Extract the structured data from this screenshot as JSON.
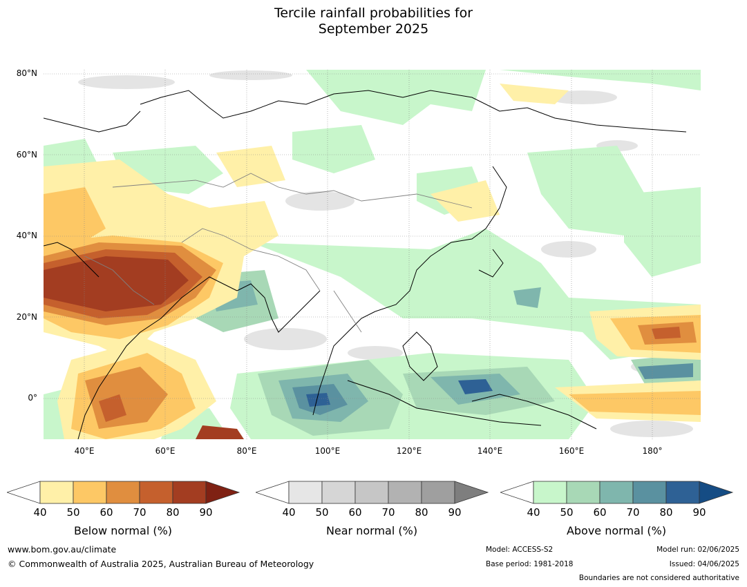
{
  "title_line1": "Tercile rainfall probabilities for",
  "title_line2": "September 2025",
  "lat_labels": [
    "80°N",
    "60°N",
    "40°N",
    "20°N",
    "0°"
  ],
  "lon_labels": [
    "40°E",
    "60°E",
    "80°E",
    "100°E",
    "120°E",
    "140°E",
    "160°E",
    "180°"
  ],
  "colorbars": {
    "below": {
      "title": "Below normal (%)",
      "ticks": [
        "40",
        "50",
        "60",
        "70",
        "80",
        "90"
      ],
      "colors": [
        "#fff0a8",
        "#fdc865",
        "#e08e3f",
        "#c5602d",
        "#a33d21",
        "#7f2113"
      ]
    },
    "near": {
      "title": "Near normal (%)",
      "ticks": [
        "40",
        "50",
        "60",
        "70",
        "80",
        "90"
      ],
      "colors": [
        "#e6e6e6",
        "#d6d6d6",
        "#c6c6c6",
        "#b2b2b2",
        "#9f9f9f",
        "#7e7e7e"
      ]
    },
    "above": {
      "title": "Above normal (%)",
      "ticks": [
        "40",
        "50",
        "60",
        "70",
        "80",
        "90"
      ],
      "colors": [
        "#c8f6cb",
        "#a8d8b6",
        "#7fb6ad",
        "#5a91a0",
        "#2e6195",
        "#154c84"
      ]
    }
  },
  "footer": {
    "website": "www.bom.gov.au/climate",
    "copyright": "© Commonwealth of Australia 2025, Australian Bureau of Meteorology",
    "model": "Model: ACCESS-S2",
    "base_period": "Base period: 1981-2018",
    "model_run": "Model run: 02/06/2025",
    "issued": "Issued: 04/06/2025",
    "disclaimer": "Boundaries are not considered authoritative"
  }
}
